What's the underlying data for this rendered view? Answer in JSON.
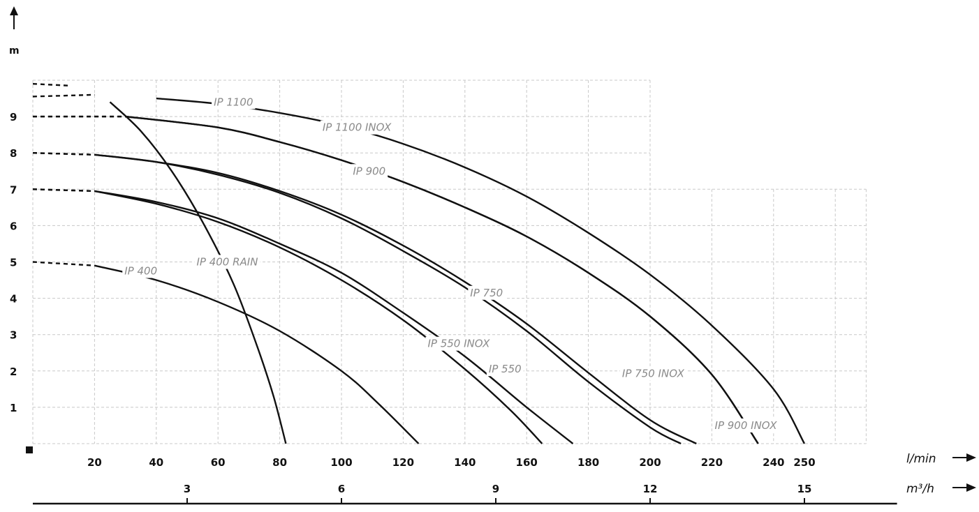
{
  "chart_data": {
    "type": "line",
    "ylabel": "m",
    "xlabel": "l/min",
    "x2label": "m³/h",
    "xlim": [
      0,
      270
    ],
    "ylim": [
      0,
      10
    ],
    "y_ticks": [
      "1",
      "2",
      "3",
      "4",
      "5",
      "6",
      "7",
      "8",
      "9"
    ],
    "x_ticks": [
      "20",
      "40",
      "60",
      "80",
      "100",
      "120",
      "140",
      "160",
      "180",
      "200",
      "220",
      "240",
      "250"
    ],
    "x2_ticks": [
      {
        "value": 50,
        "label": "3"
      },
      {
        "value": 100,
        "label": "6"
      },
      {
        "value": 150,
        "label": "9"
      },
      {
        "value": 200,
        "label": "12"
      },
      {
        "value": 250,
        "label": "15"
      }
    ],
    "series": [
      {
        "name": "IP 400",
        "label_at": [
          35,
          4.75
        ],
        "points": [
          [
            0,
            5.0
          ],
          [
            20,
            4.9
          ],
          [
            40,
            4.5
          ],
          [
            60,
            3.9
          ],
          [
            80,
            3.1
          ],
          [
            100,
            2.0
          ],
          [
            112,
            1.1
          ],
          [
            125,
            0
          ]
        ],
        "dashed_until": 20
      },
      {
        "name": "IP 400 RAIN",
        "label_at": [
          63,
          5.0
        ],
        "points": [
          [
            0,
            9.9
          ],
          [
            12,
            9.85
          ],
          [
            25,
            9.4
          ],
          [
            35,
            8.6
          ],
          [
            45,
            7.5
          ],
          [
            55,
            6.1
          ],
          [
            65,
            4.4
          ],
          [
            73,
            2.6
          ],
          [
            78,
            1.3
          ],
          [
            82,
            0
          ]
        ],
        "dashed_until": 15
      },
      {
        "name": "IP 550 INOX",
        "label_at": [
          138,
          2.75
        ],
        "points": [
          [
            0,
            7.0
          ],
          [
            20,
            6.95
          ],
          [
            40,
            6.6
          ],
          [
            60,
            6.1
          ],
          [
            80,
            5.4
          ],
          [
            100,
            4.5
          ],
          [
            120,
            3.4
          ],
          [
            140,
            2.05
          ],
          [
            155,
            0.9
          ],
          [
            165,
            0
          ]
        ],
        "dashed_until": 20
      },
      {
        "name": "IP 550",
        "label_at": [
          153,
          2.05
        ],
        "points": [
          [
            0,
            7.0
          ],
          [
            20,
            6.95
          ],
          [
            40,
            6.65
          ],
          [
            60,
            6.2
          ],
          [
            80,
            5.5
          ],
          [
            100,
            4.7
          ],
          [
            120,
            3.6
          ],
          [
            140,
            2.4
          ],
          [
            160,
            1.0
          ],
          [
            175,
            0
          ]
        ],
        "dashed_until": 20
      },
      {
        "name": "IP 750",
        "label_at": [
          147,
          4.15
        ],
        "points": [
          [
            0,
            8.0
          ],
          [
            20,
            7.95
          ],
          [
            40,
            7.75
          ],
          [
            60,
            7.4
          ],
          [
            80,
            6.9
          ],
          [
            100,
            6.2
          ],
          [
            120,
            5.3
          ],
          [
            140,
            4.3
          ],
          [
            160,
            3.1
          ],
          [
            180,
            1.7
          ],
          [
            200,
            0.45
          ],
          [
            210,
            0
          ]
        ],
        "dashed_until": 20
      },
      {
        "name": "IP 750 INOX",
        "label_at": [
          201,
          1.93
        ],
        "points": [
          [
            0,
            8.0
          ],
          [
            20,
            7.95
          ],
          [
            40,
            7.75
          ],
          [
            60,
            7.45
          ],
          [
            80,
            6.95
          ],
          [
            100,
            6.3
          ],
          [
            120,
            5.45
          ],
          [
            140,
            4.45
          ],
          [
            160,
            3.3
          ],
          [
            180,
            1.95
          ],
          [
            200,
            0.65
          ],
          [
            215,
            0
          ]
        ],
        "dashed_until": 20
      },
      {
        "name": "IP 900",
        "label_at": [
          109,
          7.5
        ],
        "points": [
          [
            0,
            9.0
          ],
          [
            30,
            9.0
          ],
          [
            60,
            8.7
          ],
          [
            80,
            8.3
          ],
          [
            100,
            7.8
          ],
          [
            120,
            7.2
          ],
          [
            140,
            6.5
          ],
          [
            160,
            5.7
          ],
          [
            180,
            4.7
          ],
          [
            200,
            3.5
          ],
          [
            220,
            1.9
          ],
          [
            235,
            0
          ]
        ],
        "dashed_until": 30
      },
      {
        "name": "IP 900 INOX",
        "label_at": [
          231,
          0.5
        ],
        "points": [
          [
            0,
            9.0
          ],
          [
            30,
            9.0
          ],
          [
            60,
            8.7
          ],
          [
            80,
            8.3
          ],
          [
            100,
            7.8
          ],
          [
            120,
            7.2
          ],
          [
            140,
            6.5
          ],
          [
            160,
            5.7
          ],
          [
            180,
            4.7
          ],
          [
            200,
            3.5
          ],
          [
            220,
            1.9
          ],
          [
            235,
            0
          ]
        ],
        "dashed_until": 30
      },
      {
        "name": "IP 1100",
        "label_at": [
          65,
          9.4
        ],
        "points": [
          [
            0,
            9.55
          ],
          [
            20,
            9.6
          ],
          [
            40,
            9.5
          ],
          [
            60,
            9.35
          ],
          [
            80,
            9.1
          ],
          [
            100,
            8.75
          ],
          [
            120,
            8.25
          ],
          [
            140,
            7.6
          ],
          [
            160,
            6.8
          ],
          [
            180,
            5.8
          ],
          [
            200,
            4.65
          ],
          [
            220,
            3.25
          ],
          [
            240,
            1.5
          ],
          [
            250,
            0
          ]
        ],
        "dashed_until": 30
      },
      {
        "name": "IP 1100 INOX",
        "label_at": [
          105,
          8.7
        ],
        "points": [],
        "dashed_until": 0
      }
    ]
  }
}
